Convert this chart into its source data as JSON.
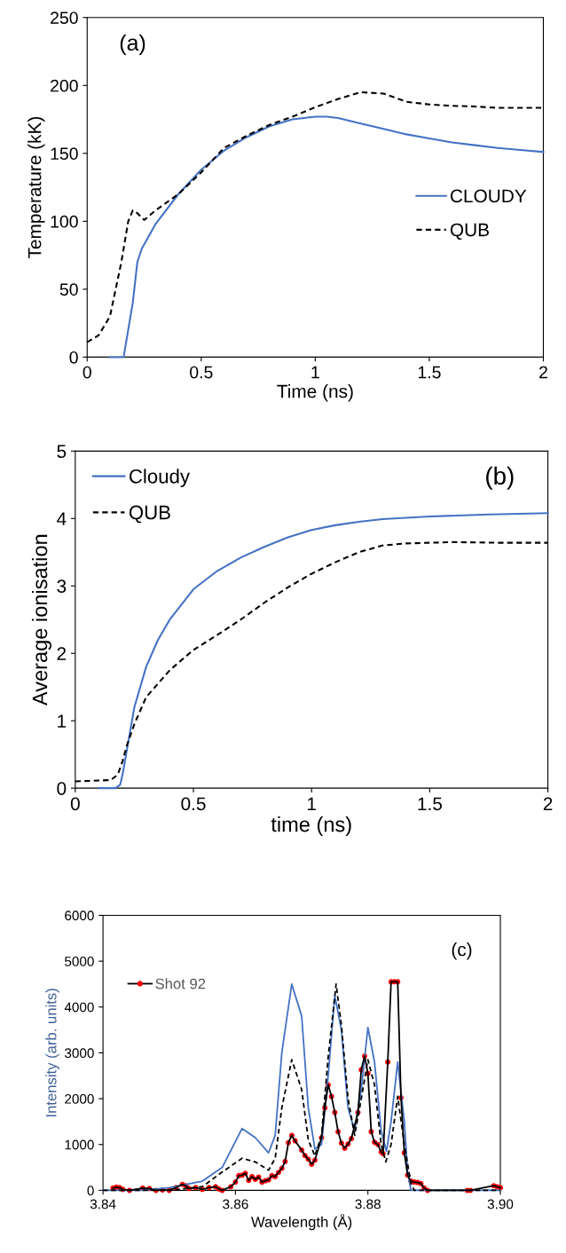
{
  "chart_data": [
    {
      "type": "line",
      "xlabel": "Time (ns)",
      "ylabel": "Temperature (kK)",
      "annotations": [
        "(a)"
      ],
      "xlim": [
        0,
        2
      ],
      "ylim": [
        0,
        250
      ],
      "xticks": [
        0,
        0.5,
        1,
        1.5,
        2
      ],
      "yticks": [
        0,
        50,
        100,
        150,
        200,
        250
      ],
      "grid": false,
      "legend": "right",
      "series": [
        {
          "name": "CLOUDY",
          "color": "#4472c4",
          "line_style": "solid",
          "x": [
            0.1,
            0.16,
            0.2,
            0.22,
            0.24,
            0.3,
            0.4,
            0.5,
            0.6,
            0.7,
            0.8,
            0.9,
            1.0,
            1.05,
            1.1,
            1.2,
            1.3,
            1.4,
            1.5,
            1.6,
            1.7,
            1.8,
            1.9,
            2.0
          ],
          "values": [
            0,
            0,
            40,
            70,
            80,
            98,
            120,
            138,
            152,
            162,
            170,
            175,
            177,
            177,
            176,
            172,
            168,
            164,
            161,
            158,
            156,
            154,
            152.5,
            151
          ]
        },
        {
          "name": "QUB",
          "color": "#000000",
          "line_style": "dashed",
          "x": [
            0,
            0.05,
            0.1,
            0.15,
            0.18,
            0.2,
            0.22,
            0.25,
            0.3,
            0.4,
            0.5,
            0.6,
            0.7,
            0.8,
            0.9,
            1.0,
            1.1,
            1.2,
            1.3,
            1.4,
            1.5,
            1.6,
            1.7,
            1.8,
            2.0
          ],
          "values": [
            11,
            16,
            30,
            70,
            100,
            108,
            106,
            101,
            108,
            120,
            136,
            154,
            163,
            171,
            177,
            184,
            190,
            195,
            194,
            188,
            186,
            185,
            184.5,
            183.5,
            183.5
          ]
        }
      ]
    },
    {
      "type": "line",
      "xlabel": "time (ns)",
      "ylabel": "Average ionisation",
      "annotations": [
        "(b)"
      ],
      "xlim": [
        0,
        2
      ],
      "ylim": [
        0,
        5
      ],
      "xticks": [
        0,
        0.5,
        1,
        1.5,
        2
      ],
      "yticks": [
        0,
        1,
        2,
        3,
        4,
        5
      ],
      "grid": false,
      "legend": "top left",
      "series": [
        {
          "name": "Cloudy",
          "color": "#4472c4",
          "line_style": "solid",
          "x": [
            0.1,
            0.17,
            0.19,
            0.2,
            0.22,
            0.25,
            0.3,
            0.35,
            0.4,
            0.5,
            0.6,
            0.7,
            0.8,
            0.9,
            1.0,
            1.1,
            1.2,
            1.3,
            1.5,
            1.75,
            2.0
          ],
          "values": [
            0,
            0,
            0.05,
            0.2,
            0.6,
            1.2,
            1.8,
            2.2,
            2.5,
            2.95,
            3.22,
            3.42,
            3.58,
            3.72,
            3.83,
            3.9,
            3.95,
            3.99,
            4.03,
            4.06,
            4.08
          ]
        },
        {
          "name": "QUB",
          "color": "#000000",
          "line_style": "dashed",
          "x": [
            0,
            0.15,
            0.18,
            0.2,
            0.22,
            0.25,
            0.3,
            0.4,
            0.5,
            0.6,
            0.7,
            0.8,
            0.9,
            1.0,
            1.1,
            1.2,
            1.3,
            1.4,
            1.6,
            1.8,
            2.0
          ],
          "values": [
            0.1,
            0.12,
            0.2,
            0.4,
            0.65,
            0.95,
            1.35,
            1.75,
            2.05,
            2.27,
            2.5,
            2.75,
            2.98,
            3.18,
            3.35,
            3.5,
            3.6,
            3.63,
            3.65,
            3.64,
            3.64
          ]
        }
      ]
    },
    {
      "type": "line",
      "xlabel": "Wavelength (Å)",
      "ylabel": "Intensity (arb. units)",
      "annotations": [
        "(c)"
      ],
      "xlim": [
        3.84,
        3.9
      ],
      "ylim": [
        0,
        6000
      ],
      "xticks": [
        {
          "value": 3.84,
          "label": "3.84"
        },
        {
          "value": 3.86,
          "label": "3.86"
        },
        {
          "value": 3.88,
          "label": "3.88"
        },
        {
          "value": 3.9,
          "label": "3.90"
        }
      ],
      "yticks": [
        0,
        1000,
        2000,
        3000,
        4000,
        5000,
        6000
      ],
      "grid": false,
      "legend": "top left",
      "series": [
        {
          "color": "#4472c4",
          "line_style": "solid",
          "x": [
            3.84,
            3.846,
            3.85,
            3.855,
            3.858,
            3.861,
            3.863,
            3.865,
            3.866,
            3.867,
            3.8685,
            3.87,
            3.871,
            3.872,
            3.873,
            3.874,
            3.875,
            3.876,
            3.877,
            3.878,
            3.879,
            3.88,
            3.881,
            3.882,
            3.8828,
            3.8835,
            3.8845,
            3.8855,
            3.886,
            3.8865,
            3.9
          ],
          "values": [
            0,
            0,
            60,
            200,
            500,
            1350,
            1150,
            820,
            1200,
            3000,
            4500,
            3800,
            1800,
            900,
            1000,
            2500,
            4250,
            3500,
            1800,
            1300,
            2200,
            3550,
            2800,
            1300,
            850,
            1500,
            2800,
            1500,
            400,
            0,
            0
          ]
        },
        {
          "color": "#000000",
          "line_style": "dashed",
          "x": [
            3.84,
            3.85,
            3.855,
            3.858,
            3.861,
            3.863,
            3.865,
            3.866,
            3.867,
            3.8685,
            3.87,
            3.871,
            3.872,
            3.873,
            3.874,
            3.8752,
            3.876,
            3.877,
            3.878,
            3.879,
            3.88,
            3.881,
            3.882,
            3.8827,
            3.8835,
            3.8845,
            3.8855,
            3.8865,
            3.887,
            3.9
          ],
          "values": [
            0,
            0,
            80,
            400,
            700,
            620,
            440,
            700,
            1800,
            2850,
            2200,
            1100,
            750,
            1200,
            2900,
            4500,
            3600,
            2000,
            1200,
            2000,
            2850,
            2300,
            1000,
            620,
            1000,
            2050,
            1000,
            150,
            0,
            0
          ]
        },
        {
          "name": "Shot 92",
          "color": "#000000",
          "colors": [
            "#ff0000",
            "#ff0000",
            "#ff0000",
            "#ff0000",
            "#ff0000",
            "#ff0000",
            "#ff0000",
            "#ff0000",
            "#ff0000",
            "#ff0000",
            "#ff0000",
            "#ff0000",
            "#ff0000",
            "#ff0000",
            "#ff0000",
            "#ff0000",
            "#ff0000",
            "#ff0000",
            "#ff0000",
            "#ff0000",
            "#ff0000",
            "#ff0000",
            "#ff0000",
            "#ff0000",
            "#ff0000",
            "#ff0000",
            "#ff0000",
            "#ff0000",
            "#ff0000",
            "#ff0000",
            "#ff0000",
            "#ff0000",
            "#ff0000",
            "#ff0000",
            "#ff0000",
            "#ff0000",
            "#ff0000",
            "#ff0000",
            "#ff0000",
            "#ff0000",
            "#ff0000",
            "#ff0000",
            "#ff0000",
            "#ff0000",
            "#ff0000",
            "#ff0000",
            "#ff0000",
            "#ff0000",
            "#ff0000",
            "#ff0000",
            "#ff0000",
            "#ff0000",
            "#ff0000",
            "#ff0000",
            "#ff0000",
            "#ff0000",
            "#ff0000",
            "#ff0000",
            "#ff0000",
            "#ff0000",
            "#ff0000",
            "#ff0000",
            "#ff0000",
            "#ff0000",
            "#ff0000",
            "#ff0000",
            "#ff0000",
            "#ff0000",
            "#ff0000",
            "#ff0000",
            "#ff0000",
            "#ff0000",
            "#ff0000",
            "#ff0000",
            "#ff0000",
            "#ff0000",
            "#ff0000",
            "#ff0000",
            "#ff0000",
            "#ff0000",
            "#ff0000",
            "#ff0000"
          ],
          "marker": "circle",
          "line_style": "solid",
          "x": [
            3.8415,
            3.842,
            3.8425,
            3.843,
            3.844,
            3.846,
            3.847,
            3.848,
            3.849,
            3.85,
            3.851,
            3.852,
            3.8525,
            3.853,
            3.854,
            3.855,
            3.856,
            3.857,
            3.8575,
            3.858,
            3.8593,
            3.86,
            3.8605,
            3.861,
            3.8615,
            3.862,
            3.8625,
            3.863,
            3.8635,
            3.864,
            3.8645,
            3.865,
            3.8655,
            3.866,
            3.8665,
            3.867,
            3.8675,
            3.868,
            3.8685,
            3.869,
            3.87,
            3.8705,
            3.871,
            3.8715,
            3.872,
            3.873,
            3.8735,
            3.874,
            3.8745,
            3.875,
            3.8755,
            3.876,
            3.8765,
            3.877,
            3.8775,
            3.8785,
            3.879,
            3.8795,
            3.88,
            3.8805,
            3.881,
            3.8815,
            3.882,
            3.8823,
            3.883,
            3.8835,
            3.884,
            3.8845,
            3.885,
            3.8855,
            3.886,
            3.8865,
            3.887,
            3.8875,
            3.888,
            3.8885,
            3.889,
            3.895,
            3.8955,
            3.899,
            3.8995,
            3.9
          ],
          "values": [
            50,
            70,
            60,
            20,
            0,
            50,
            40,
            0,
            10,
            0,
            60,
            130,
            100,
            40,
            60,
            20,
            60,
            80,
            30,
            0,
            80,
            180,
            320,
            330,
            370,
            220,
            300,
            240,
            290,
            180,
            210,
            230,
            320,
            300,
            390,
            480,
            630,
            1040,
            1200,
            1080,
            880,
            760,
            680,
            570,
            660,
            1150,
            1800,
            2300,
            2050,
            1700,
            1280,
            1030,
            920,
            1010,
            1130,
            1700,
            2630,
            2930,
            2550,
            1280,
            1050,
            1000,
            840,
            800,
            2800,
            4550,
            4550,
            4550,
            2020,
            820,
            330,
            200,
            180,
            170,
            150,
            50,
            0,
            0,
            0,
            100,
            80,
            60
          ]
        }
      ]
    }
  ]
}
